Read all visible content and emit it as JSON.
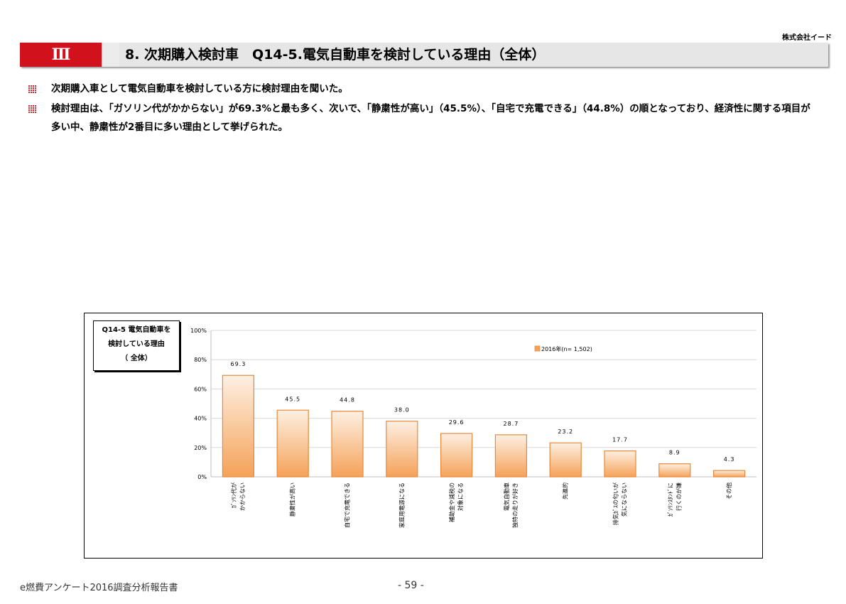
{
  "header": {
    "company": "株式会社イード",
    "section_num": "Ⅲ",
    "title": "8. 次期購入検討車　Q14-5.電気自動車を検討している理由（全体）"
  },
  "bullets": [
    "次期購入車として電気自動車を検討している方に検討理由を聞いた。",
    "検討理由は、「ガソリン代がかからない」が69.3%と最も多く、次いで、「静粛性が高い」（45.5%）、「自宅で充電できる」（44.8%）の順となっており、経済性に関する項目が多い中、静粛性が2番目に多い理由として挙げられた。"
  ],
  "chart_box_title": [
    "Q14-5 電気自動車を",
    "検討している理由",
    "（ 全体）"
  ],
  "chart_data": {
    "type": "bar",
    "categories": [
      [
        "ｶﾞｿﾘﾝ代が",
        "かからない"
      ],
      [
        "静粛性が高い"
      ],
      [
        "自宅で充電できる"
      ],
      [
        "家庭用電源になる"
      ],
      [
        "補助金や減税の",
        "対象になる"
      ],
      [
        "電気自動車",
        "独特の走りが好き"
      ],
      [
        "先進的"
      ],
      [
        "排気ｶﾞｽの匂いが",
        "気にならない"
      ],
      [
        "ｶﾞｿﾘﾝｽﾀﾝﾄﾞに",
        "行くのが嫌"
      ],
      [
        "その他"
      ]
    ],
    "series": [
      {
        "name": "2016年(n= 1,502)",
        "values": [
          69.3,
          45.5,
          44.8,
          38.0,
          29.6,
          28.7,
          23.2,
          17.7,
          8.9,
          4.3
        ]
      }
    ],
    "value_labels": [
      "69.3",
      "45.5",
      "44.8",
      "38.0",
      "29.6",
      "28.7",
      "23.2",
      "17.7",
      "8.9",
      "4.3"
    ],
    "ylim": [
      0,
      100
    ],
    "yticks": [
      0,
      20,
      40,
      60,
      80,
      100
    ],
    "ytick_labels": [
      "0%",
      "20%",
      "40%",
      "60%",
      "80%",
      "100%"
    ],
    "legend_position": "top-right",
    "colors": {
      "bar_top": "#fdf0e2",
      "bar_bottom": "#f5a259",
      "bar_border": "#e8883a",
      "grid": "#d9d9d9"
    }
  },
  "footer": {
    "left": "e燃費アンケート2016調査分析報告書",
    "page": "- 59 -"
  }
}
